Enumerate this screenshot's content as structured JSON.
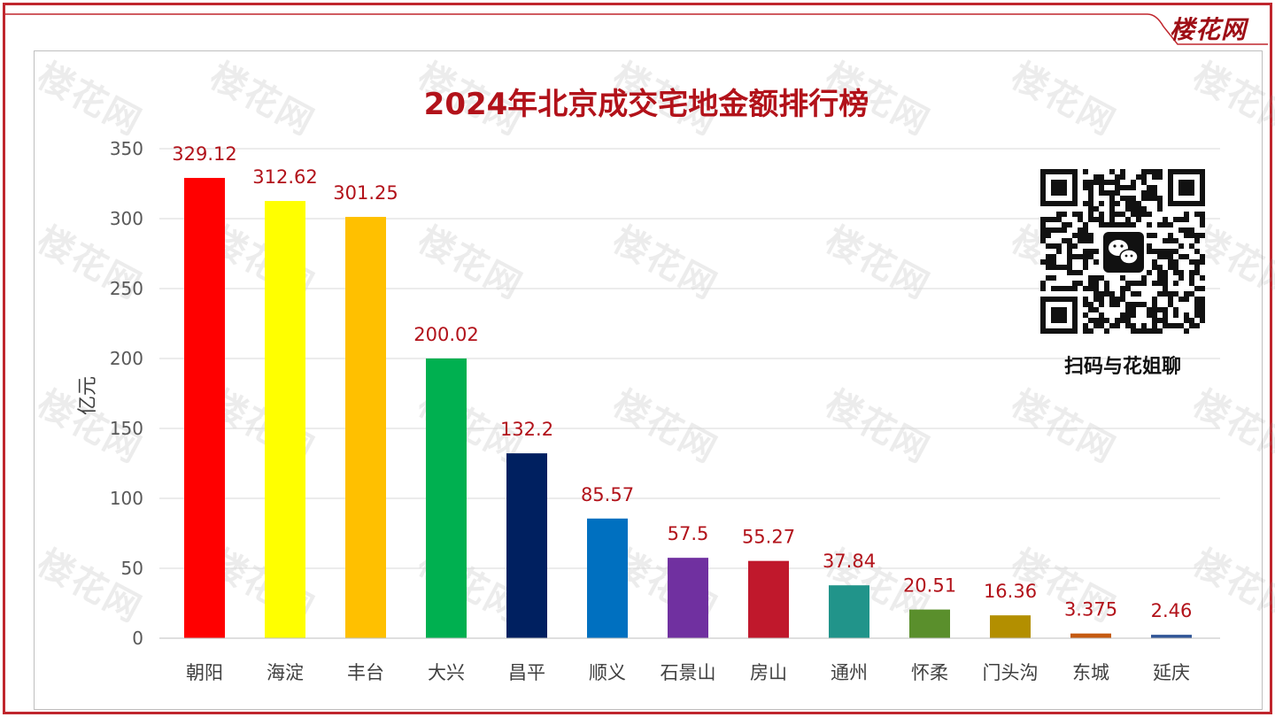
{
  "logo": {
    "text": "楼花网"
  },
  "watermark": {
    "text": "楼花网"
  },
  "qr": {
    "caption": "扫码与花姐聊",
    "icon": "wechat-icon"
  },
  "colors": {
    "frame": "#c0262d",
    "title": "#b2121a",
    "data_label": "#b2121a",
    "grid": "#d9d9d9",
    "axis_text": "#595959"
  },
  "chart_data": {
    "type": "bar",
    "title": "2024年北京成交宅地金额排行榜",
    "xlabel": "",
    "ylabel": "亿元",
    "ylim": [
      0,
      350
    ],
    "yticks": [
      0,
      50,
      100,
      150,
      200,
      250,
      300,
      350
    ],
    "grid": true,
    "legend": "none",
    "categories": [
      "朝阳",
      "海淀",
      "丰台",
      "大兴",
      "昌平",
      "顺义",
      "石景山",
      "房山",
      "通州",
      "怀柔",
      "门头沟",
      "东城",
      "延庆"
    ],
    "values": [
      329.12,
      312.62,
      301.25,
      200.02,
      132.2,
      85.57,
      57.5,
      55.27,
      37.84,
      20.51,
      16.36,
      3.375,
      2.46
    ],
    "value_labels": [
      "329.12",
      "312.62",
      "301.25",
      "200.02",
      "132.2",
      "85.57",
      "57.5",
      "55.27",
      "37.84",
      "20.51",
      "16.36",
      "3.375",
      "2.46"
    ],
    "bar_colors": [
      "#ff0000",
      "#ffff00",
      "#ffc000",
      "#00b050",
      "#002060",
      "#0070c0",
      "#7030a0",
      "#c0182c",
      "#21948a",
      "#5a8f2c",
      "#b38f00",
      "#c55a11",
      "#2f5597"
    ]
  }
}
